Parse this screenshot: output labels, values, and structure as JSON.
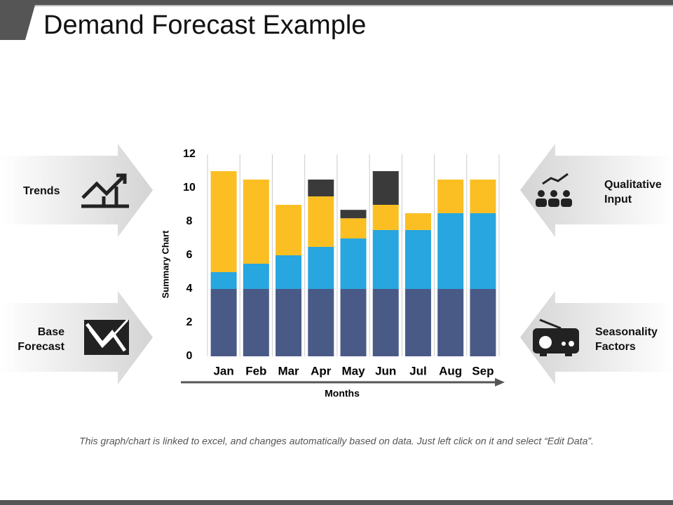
{
  "title": "Demand Forecast Example",
  "side_labels": {
    "trends": "Trends",
    "base_forecast": "Base Forecast",
    "qualitative_input": "Qualitative Input",
    "seasonality_factors": "Seasonality Factors"
  },
  "footnote": "This graph/chart is linked to excel, and changes automatically based on data. Just left click on it and select “Edit Data”.",
  "chart_data": {
    "type": "stacked-bar",
    "y_label": "Summary Chart",
    "x_label": "Months",
    "categories": [
      "Jan",
      "Feb",
      "Mar",
      "Apr",
      "May",
      "Jun",
      "Jul",
      "Aug",
      "Sep"
    ],
    "series": [
      {
        "color": "#4a5a87",
        "values": [
          4,
          4,
          4,
          4,
          4,
          4,
          4,
          4,
          4
        ]
      },
      {
        "color": "#27a6df",
        "values": [
          1,
          1.5,
          2,
          2.5,
          3,
          3.5,
          3.5,
          4.5,
          4.5
        ]
      },
      {
        "color": "#fbbf24",
        "values": [
          6,
          5,
          3,
          3,
          1.2,
          1.5,
          1,
          2,
          2
        ]
      },
      {
        "color": "#3a3a3a",
        "values": [
          0,
          0,
          0,
          1,
          0.5,
          2,
          0,
          0,
          0
        ]
      }
    ],
    "ylim": [
      0,
      12
    ],
    "yticks": [
      0,
      2,
      4,
      6,
      8,
      10,
      12
    ]
  }
}
